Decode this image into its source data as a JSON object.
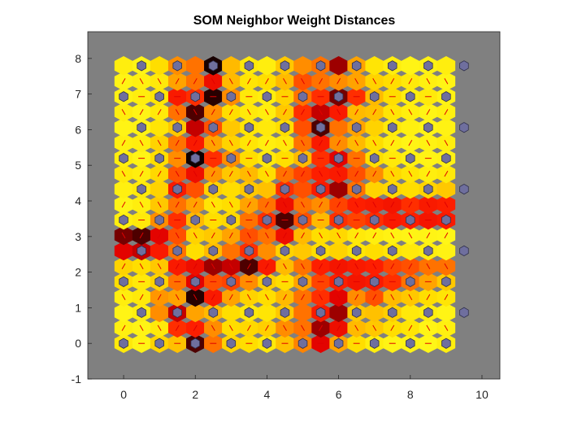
{
  "chart_data": {
    "type": "heatmap",
    "subtype": "som-neighbor-distances",
    "title": "SOM Neighbor Weight Distances",
    "xlabel": "",
    "ylabel": "",
    "xlim": [
      -1,
      10.5
    ],
    "ylim": [
      -1,
      8.75
    ],
    "xticks": [
      "0",
      "2",
      "4",
      "6",
      "8",
      "10"
    ],
    "yticks": [
      "-1",
      "0",
      "1",
      "2",
      "3",
      "4",
      "5",
      "6",
      "7",
      "8"
    ],
    "grid": {
      "rows": 10,
      "cols": 10,
      "topology": "hexagonal"
    },
    "background_color": "#808080",
    "neuron_color": "#6f6f9e",
    "line_color": "#e00000",
    "colormap": [
      "#000000",
      "#700000",
      "#e00000",
      "#ff2000",
      "#ff8000",
      "#ffc000",
      "#ffe000",
      "#ffff20"
    ],
    "distances": [
      [
        0.9,
        0.95,
        0.8,
        0.72,
        0.1,
        0.55,
        0.8,
        0.85,
        0.9,
        0.72,
        0.58,
        0.3,
        0.65,
        0.85,
        0.92,
        0.95,
        0.94,
        0.96,
        0.92
      ],
      [
        0.93,
        0.95,
        0.9,
        0.45,
        0.42,
        0.6,
        0.85,
        0.82,
        0.78,
        0.6,
        0.55,
        0.2,
        0.35,
        0.7,
        0.75,
        0.85,
        0.88,
        0.95,
        0.93
      ],
      [
        0.95,
        0.92,
        0.6,
        0.25,
        0.65,
        0.7,
        0.85,
        0.9,
        0.88,
        0.75,
        0.55,
        0.4,
        0.2,
        0.75,
        0.72,
        0.78,
        0.9,
        0.92,
        0.95
      ],
      [
        0.92,
        0.9,
        0.62,
        0.65,
        0.05,
        0.4,
        0.65,
        0.8,
        0.85,
        0.7,
        0.55,
        0.45,
        0.3,
        0.6,
        0.5,
        0.7,
        0.75,
        0.85,
        0.88
      ],
      [
        0.85,
        0.9,
        0.8,
        0.55,
        0.3,
        0.5,
        0.48,
        0.6,
        0.78,
        0.85,
        0.65,
        0.48,
        0.42,
        0.38,
        0.4,
        0.45,
        0.55,
        0.65,
        0.75
      ],
      [
        0.8,
        0.85,
        0.75,
        0.4,
        0.35,
        0.2,
        0.25,
        0.1,
        0.4,
        0.7,
        0.55,
        0.42,
        0.38,
        0.4,
        0.42,
        0.48,
        0.5,
        0.55,
        0.55
      ],
      [
        0.3,
        0.25,
        0.4,
        0.55,
        0.85,
        0.7,
        0.55,
        0.45,
        0.6,
        0.8,
        0.75,
        0.85,
        0.8,
        0.88,
        0.85,
        0.88,
        0.9,
        0.92,
        0.94
      ],
      [
        0.15,
        0.1,
        0.3,
        0.5,
        0.8,
        0.75,
        0.65,
        0.5,
        0.55,
        0.35,
        0.7,
        0.85,
        0.82,
        0.9,
        0.92,
        0.94,
        0.95,
        0.95,
        0.96
      ],
      [
        0.92,
        0.9,
        0.6,
        0.45,
        0.7,
        0.85,
        0.82,
        0.55,
        0.45,
        0.1,
        0.5,
        0.7,
        0.45,
        0.48,
        0.45,
        0.4,
        0.42,
        0.38,
        0.4
      ],
      [
        0.95,
        0.92,
        0.75,
        0.55,
        0.65,
        0.88,
        0.85,
        0.65,
        0.55,
        0.35,
        0.55,
        0.6,
        0.48,
        0.42,
        0.4,
        0.38,
        0.45,
        0.4,
        0.42
      ],
      [
        0.93,
        0.9,
        0.8,
        0.4,
        0.5,
        0.8,
        0.85,
        0.75,
        0.72,
        0.45,
        0.5,
        0.4,
        0.2,
        0.55,
        0.8,
        0.82,
        0.85,
        0.8,
        0.75
      ],
      [
        0.9,
        0.92,
        0.82,
        0.5,
        0.35,
        0.62,
        0.75,
        0.7,
        0.85,
        0.55,
        0.48,
        0.42,
        0.4,
        0.5,
        0.6,
        0.82,
        0.88,
        0.92,
        0.9
      ],
      [
        0.92,
        0.95,
        0.85,
        0.6,
        0.02,
        0.45,
        0.6,
        0.85,
        0.9,
        0.85,
        0.7,
        0.45,
        0.3,
        0.55,
        0.85,
        0.9,
        0.93,
        0.95,
        0.94
      ],
      [
        0.93,
        0.92,
        0.8,
        0.55,
        0.4,
        0.65,
        0.8,
        0.88,
        0.92,
        0.9,
        0.55,
        0.4,
        0.6,
        0.7,
        0.85,
        0.92,
        0.95,
        0.94,
        0.92
      ],
      [
        0.95,
        0.94,
        0.88,
        0.75,
        0.25,
        0.5,
        0.75,
        0.88,
        0.9,
        0.85,
        0.5,
        0.1,
        0.55,
        0.65,
        0.8,
        0.9,
        0.93,
        0.95,
        0.94
      ],
      [
        0.92,
        0.95,
        0.9,
        0.55,
        0.1,
        0.6,
        0.85,
        0.9,
        0.92,
        0.75,
        0.45,
        0.25,
        0.4,
        0.7,
        0.72,
        0.88,
        0.92,
        0.95,
        0.93
      ],
      [
        0.94,
        0.92,
        0.88,
        0.4,
        0.45,
        0.05,
        0.6,
        0.9,
        0.92,
        0.8,
        0.55,
        0.45,
        0.15,
        0.45,
        0.7,
        0.85,
        0.92,
        0.9,
        0.94
      ],
      [
        0.95,
        0.93,
        0.9,
        0.65,
        0.55,
        0.35,
        0.7,
        0.88,
        0.85,
        0.7,
        0.5,
        0.55,
        0.6,
        0.65,
        0.8,
        0.85,
        0.9,
        0.93,
        0.95
      ],
      [
        0.92,
        0.95,
        0.85,
        0.6,
        0.55,
        0.03,
        0.7,
        0.9,
        0.92,
        0.75,
        0.6,
        0.55,
        0.2,
        0.65,
        0.88,
        0.92,
        0.95,
        0.94,
        0.92
      ]
    ]
  }
}
